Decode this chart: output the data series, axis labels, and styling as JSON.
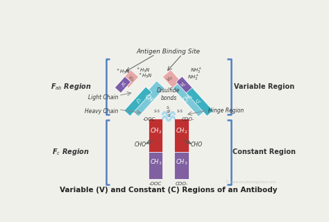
{
  "title": "Variable (V) and Constant (C) Regions of an Antibody",
  "background_color": "#f0f0eb",
  "colors": {
    "VH_pink": "#e8a8a8",
    "VL_purple": "#7b5ca8",
    "CH1_light_blue": "#7ac8d8",
    "CL_teal": "#3ab0c0",
    "CH2_red": "#c03030",
    "CH3_purple_dark": "#8060a0",
    "CH3_purple_light": "#a080c0",
    "hinge_blue": "#a8d8f0",
    "bracket_blue": "#5080c0",
    "text_dark": "#333333",
    "text_white": "#ffffff"
  },
  "fab_label": "F$_{ab}$ Region",
  "fc_label": "F$_{c}$ Region",
  "variable_label": "Variable Region",
  "constant_label": "Constant Region",
  "antigen_label": "Antigen Binding Site",
  "disulfide_label": "Disulfide\nbonds",
  "light_chain_label": "Light Chain",
  "heavy_chain_label": "Heavy Chain",
  "hinge_label": "Hinge Region"
}
